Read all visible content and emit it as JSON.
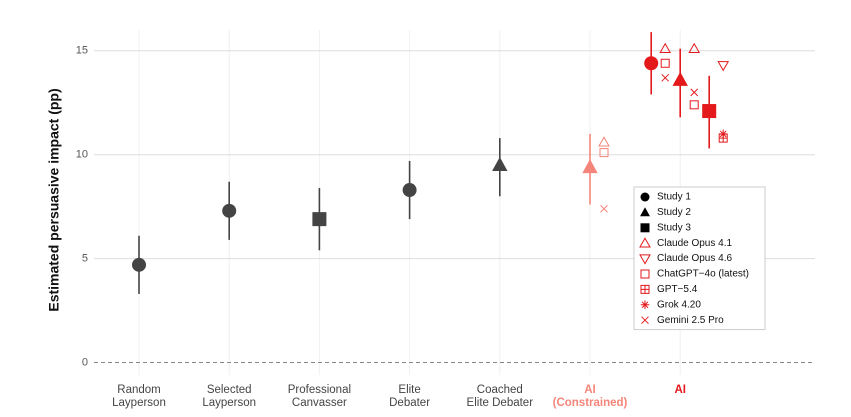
{
  "chart_data": {
    "type": "dot-errorbar",
    "ylabel": "Estimated persuasive impact (pp)",
    "ylim": [
      -0.6,
      16
    ],
    "yticks": [
      0,
      5,
      10,
      15
    ],
    "grid": true,
    "categories": [
      [
        "Random",
        "Layperson"
      ],
      [
        "Selected",
        "Layperson"
      ],
      [
        "Professional",
        "Canvasser"
      ],
      [
        "Elite",
        "Debater"
      ],
      [
        "Coached",
        "Elite Debater"
      ],
      [
        "AI",
        "(Constrained)"
      ],
      [
        "AI"
      ]
    ],
    "category_colors": [
      "#444444",
      "#444444",
      "#444444",
      "#444444",
      "#444444",
      "#f4857a",
      "#e3191c"
    ],
    "category_bold": [
      false,
      false,
      false,
      false,
      false,
      true,
      true
    ],
    "studies": [
      {
        "name": "Study 1",
        "marker": "circle",
        "legend_color": "#000000",
        "points": [
          {
            "category": 0,
            "value": 4.7,
            "low": 3.3,
            "high": 6.1
          },
          {
            "category": 1,
            "value": 7.3,
            "low": 5.9,
            "high": 8.7
          },
          {
            "category": 3,
            "value": 8.3,
            "low": 6.9,
            "high": 9.7
          },
          {
            "category": 6,
            "value": 14.4,
            "low": 12.9,
            "high": 15.9
          }
        ]
      },
      {
        "name": "Study 2",
        "marker": "triangle",
        "legend_color": "#000000",
        "points": [
          {
            "category": 4,
            "value": 9.5,
            "low": 8.0,
            "high": 10.8
          },
          {
            "category": 5,
            "value": 9.4,
            "low": 7.6,
            "high": 11.0
          },
          {
            "category": 6,
            "value": 13.6,
            "low": 11.8,
            "high": 15.1
          }
        ]
      },
      {
        "name": "Study 3",
        "marker": "square",
        "legend_color": "#000000",
        "points": [
          {
            "category": 2,
            "value": 6.9,
            "low": 5.4,
            "high": 8.4
          },
          {
            "category": 6,
            "value": 12.1,
            "low": 10.3,
            "high": 13.8
          }
        ]
      }
    ],
    "models": [
      {
        "name": "Claude Opus 4.1",
        "marker": "triangle-up-open",
        "legend_color": "#e3191c",
        "points": [
          {
            "category": 5,
            "study": 1,
            "value": 10.6
          },
          {
            "category": 6,
            "study": 0,
            "value": 15.1
          },
          {
            "category": 6,
            "study": 1,
            "value": 15.1
          }
        ]
      },
      {
        "name": "Claude Opus 4.6",
        "marker": "triangle-down-open",
        "legend_color": "#e3191c",
        "points": [
          {
            "category": 6,
            "study": 2,
            "value": 14.3
          }
        ]
      },
      {
        "name": "ChatGPT−4o (latest)",
        "marker": "square-open",
        "legend_color": "#e3191c",
        "points": [
          {
            "category": 5,
            "study": 1,
            "value": 10.1
          },
          {
            "category": 6,
            "study": 0,
            "value": 14.4
          },
          {
            "category": 6,
            "study": 1,
            "value": 12.4
          }
        ]
      },
      {
        "name": "GPT−5.4",
        "marker": "square-plus",
        "legend_color": "#e3191c",
        "points": [
          {
            "category": 6,
            "study": 2,
            "value": 10.8
          }
        ]
      },
      {
        "name": "Grok 4.20",
        "marker": "asterisk",
        "legend_color": "#e3191c",
        "points": [
          {
            "category": 6,
            "study": 2,
            "value": 11.0
          }
        ]
      },
      {
        "name": "Gemini 2.5 Pro",
        "marker": "cross",
        "legend_color": "#e3191c",
        "points": [
          {
            "category": 5,
            "study": 1,
            "value": 7.4
          },
          {
            "category": 6,
            "study": 0,
            "value": 13.7
          },
          {
            "category": 6,
            "study": 1,
            "value": 13.0
          }
        ]
      }
    ],
    "legend": "right"
  }
}
